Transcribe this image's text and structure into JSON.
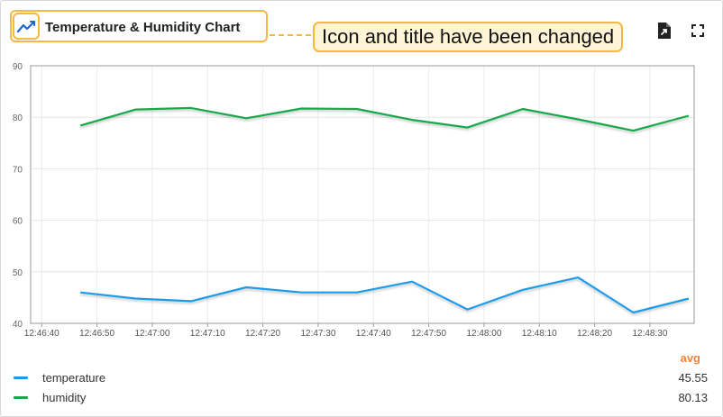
{
  "widget": {
    "title": "Temperature & Humidity Chart",
    "title_icon": "trend-line-icon",
    "annotation": "Icon and title have been changed",
    "actions": [
      "export-file-icon",
      "fullscreen-icon"
    ]
  },
  "chart_data": {
    "type": "line",
    "x": [
      "12:46:47",
      "12:46:57",
      "12:47:07",
      "12:47:17",
      "12:47:27",
      "12:47:37",
      "12:47:47",
      "12:47:57",
      "12:48:07",
      "12:48:17",
      "12:48:27",
      "12:48:37"
    ],
    "x_ticks": [
      "12:46:40",
      "12:46:50",
      "12:47:00",
      "12:47:10",
      "12:47:20",
      "12:47:30",
      "12:47:40",
      "12:47:50",
      "12:48:00",
      "12:48:10",
      "12:48:20",
      "12:48:30"
    ],
    "xlim": [
      "12:46:38",
      "12:48:38"
    ],
    "y_ticks": [
      40,
      50,
      60,
      70,
      80,
      90
    ],
    "ylim": [
      40,
      90
    ],
    "grid": true,
    "series": [
      {
        "name": "temperature",
        "color": "#1e9be8",
        "values": [
          46.0,
          44.8,
          44.3,
          47.0,
          46.0,
          46.0,
          48.1,
          42.7,
          46.5,
          48.9,
          42.1,
          44.8
        ]
      },
      {
        "name": "humidity",
        "color": "#17a84a",
        "values": [
          78.4,
          81.5,
          81.8,
          79.8,
          81.7,
          81.6,
          79.5,
          78.0,
          81.6,
          79.6,
          77.4,
          80.3
        ]
      }
    ],
    "legend": {
      "header": "avg",
      "placement": "bottom",
      "rows": [
        {
          "name": "temperature",
          "value": "45.55"
        },
        {
          "name": "humidity",
          "value": "80.13"
        }
      ]
    }
  }
}
